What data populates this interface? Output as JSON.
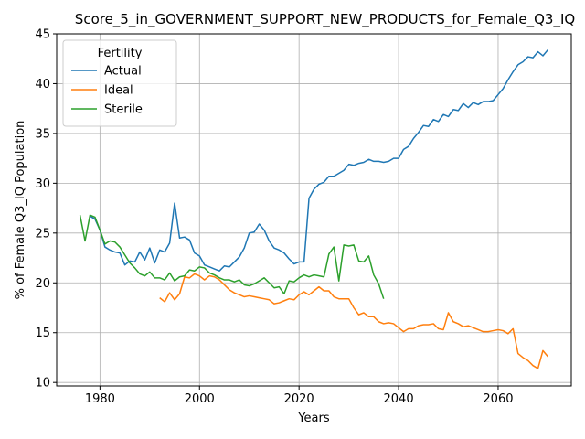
{
  "chart_data": {
    "type": "line",
    "title": "Score_5_in_GOVERNMENT_SUPPORT_NEW_PRODUCTS_for_Female_Q3_IQ",
    "xlabel": "Years",
    "ylabel": "% of Female Q3_IQ Population",
    "xlim": [
      1971.3,
      2074.7
    ],
    "ylim": [
      9.65,
      45.0
    ],
    "xticks": [
      1980,
      2000,
      2020,
      2040,
      2060
    ],
    "yticks": [
      10,
      15,
      20,
      25,
      30,
      35,
      40,
      45
    ],
    "grid": true,
    "legend": {
      "title": "Fertility",
      "placement": "top-left"
    },
    "series": [
      {
        "name": "Actual",
        "color": "#1f77b4",
        "x": [
          1978,
          1979,
          1980,
          1981,
          1982,
          1983,
          1984,
          1985,
          1986,
          1987,
          1988,
          1989,
          1990,
          1991,
          1992,
          1993,
          1994,
          1995,
          1996,
          1997,
          1998,
          1999,
          2000,
          2001,
          2002,
          2003,
          2004,
          2005,
          2006,
          2007,
          2008,
          2009,
          2010,
          2011,
          2012,
          2013,
          2014,
          2015,
          2016,
          2017,
          2018,
          2019,
          2020,
          2021,
          2022,
          2023,
          2024,
          2025,
          2026,
          2027,
          2028,
          2029,
          2030,
          2031,
          2032,
          2033,
          2034,
          2035,
          2036,
          2037,
          2038,
          2039,
          2040,
          2041,
          2042,
          2043,
          2044,
          2045,
          2046,
          2047,
          2048,
          2049,
          2050,
          2051,
          2052,
          2053,
          2054,
          2055,
          2056,
          2057,
          2058,
          2059,
          2060,
          2061,
          2062,
          2063,
          2064,
          2065,
          2066,
          2067,
          2068,
          2069,
          2070
        ],
        "y": [
          26.7,
          26.4,
          25.3,
          23.6,
          23.3,
          23.1,
          23.0,
          21.8,
          22.2,
          22.1,
          23.1,
          22.3,
          23.5,
          22.0,
          23.3,
          23.1,
          24.0,
          28.0,
          24.5,
          24.6,
          24.3,
          23.0,
          22.7,
          21.8,
          21.6,
          21.4,
          21.2,
          21.7,
          21.6,
          22.1,
          22.6,
          23.5,
          25.0,
          25.1,
          25.9,
          25.3,
          24.2,
          23.5,
          23.3,
          23.0,
          22.4,
          21.9,
          22.1,
          22.1,
          28.5,
          29.4,
          29.9,
          30.1,
          30.7,
          30.7,
          31.0,
          31.3,
          31.9,
          31.8,
          32.0,
          32.1,
          32.4,
          32.2,
          32.2,
          32.1,
          32.2,
          32.5,
          32.5,
          33.4,
          33.7,
          34.5,
          35.1,
          35.8,
          35.7,
          36.4,
          36.2,
          36.9,
          36.7,
          37.4,
          37.3,
          38.0,
          37.6,
          38.1,
          37.9,
          38.2,
          38.2,
          38.3,
          38.9,
          39.5,
          40.4,
          41.2,
          41.9,
          42.2,
          42.7,
          42.6,
          43.2,
          42.8,
          43.4
        ]
      },
      {
        "name": "Ideal",
        "color": "#ff7f0e",
        "x": [
          1992,
          1993,
          1994,
          1995,
          1996,
          1997,
          1998,
          1999,
          2000,
          2001,
          2002,
          2003,
          2004,
          2005,
          2006,
          2007,
          2008,
          2009,
          2010,
          2011,
          2012,
          2013,
          2014,
          2015,
          2016,
          2017,
          2018,
          2019,
          2020,
          2021,
          2022,
          2023,
          2024,
          2025,
          2026,
          2027,
          2028,
          2029,
          2030,
          2031,
          2032,
          2033,
          2034,
          2035,
          2036,
          2037,
          2038,
          2039,
          2040,
          2041,
          2042,
          2043,
          2044,
          2045,
          2046,
          2047,
          2048,
          2049,
          2050,
          2051,
          2052,
          2053,
          2054,
          2055,
          2056,
          2057,
          2058,
          2059,
          2060,
          2061,
          2062,
          2063,
          2064,
          2065,
          2066,
          2067,
          2068,
          2069,
          2070
        ],
        "y": [
          18.5,
          18.1,
          19.0,
          18.3,
          18.9,
          20.6,
          20.5,
          20.9,
          20.7,
          20.3,
          20.7,
          20.6,
          20.3,
          19.8,
          19.3,
          19.0,
          18.8,
          18.6,
          18.7,
          18.6,
          18.5,
          18.4,
          18.3,
          17.9,
          18.0,
          18.2,
          18.4,
          18.3,
          18.8,
          19.1,
          18.8,
          19.2,
          19.6,
          19.2,
          19.2,
          18.6,
          18.4,
          18.4,
          18.4,
          17.5,
          16.8,
          17.0,
          16.6,
          16.6,
          16.1,
          15.9,
          16.0,
          15.9,
          15.5,
          15.1,
          15.4,
          15.4,
          15.7,
          15.8,
          15.8,
          15.9,
          15.4,
          15.3,
          17.0,
          16.1,
          15.9,
          15.6,
          15.7,
          15.5,
          15.3,
          15.1,
          15.1,
          15.2,
          15.3,
          15.2,
          14.9,
          15.4,
          12.9,
          12.5,
          12.2,
          11.7,
          11.4,
          13.2,
          12.6
        ]
      },
      {
        "name": "Sterile",
        "color": "#2ca02c",
        "x": [
          1976,
          1977,
          1978,
          1979,
          1980,
          1981,
          1982,
          1983,
          1984,
          1985,
          1986,
          1987,
          1988,
          1989,
          1990,
          1991,
          1992,
          1993,
          1994,
          1995,
          1996,
          1997,
          1998,
          1999,
          2000,
          2001,
          2002,
          2003,
          2004,
          2005,
          2006,
          2007,
          2008,
          2009,
          2010,
          2011,
          2012,
          2013,
          2014,
          2015,
          2016,
          2017,
          2018,
          2019,
          2020,
          2021,
          2022,
          2023,
          2024,
          2025,
          2026,
          2027,
          2028,
          2029,
          2030,
          2031,
          2032,
          2033,
          2034,
          2035,
          2036,
          2037
        ],
        "y": [
          26.8,
          24.2,
          26.8,
          26.6,
          25.3,
          23.9,
          24.2,
          24.1,
          23.6,
          22.8,
          22.0,
          21.5,
          20.9,
          20.7,
          21.1,
          20.5,
          20.5,
          20.3,
          21.0,
          20.2,
          20.6,
          20.7,
          21.3,
          21.2,
          21.6,
          21.5,
          21.0,
          20.8,
          20.5,
          20.3,
          20.3,
          20.1,
          20.3,
          19.8,
          19.7,
          19.9,
          20.2,
          20.5,
          20.0,
          19.5,
          19.6,
          18.9,
          20.2,
          20.1,
          20.5,
          20.8,
          20.6,
          20.8,
          20.7,
          20.6,
          22.9,
          23.6,
          20.2,
          23.8,
          23.7,
          23.8,
          22.2,
          22.1,
          22.7,
          20.8,
          19.9,
          18.4
        ]
      }
    ]
  }
}
